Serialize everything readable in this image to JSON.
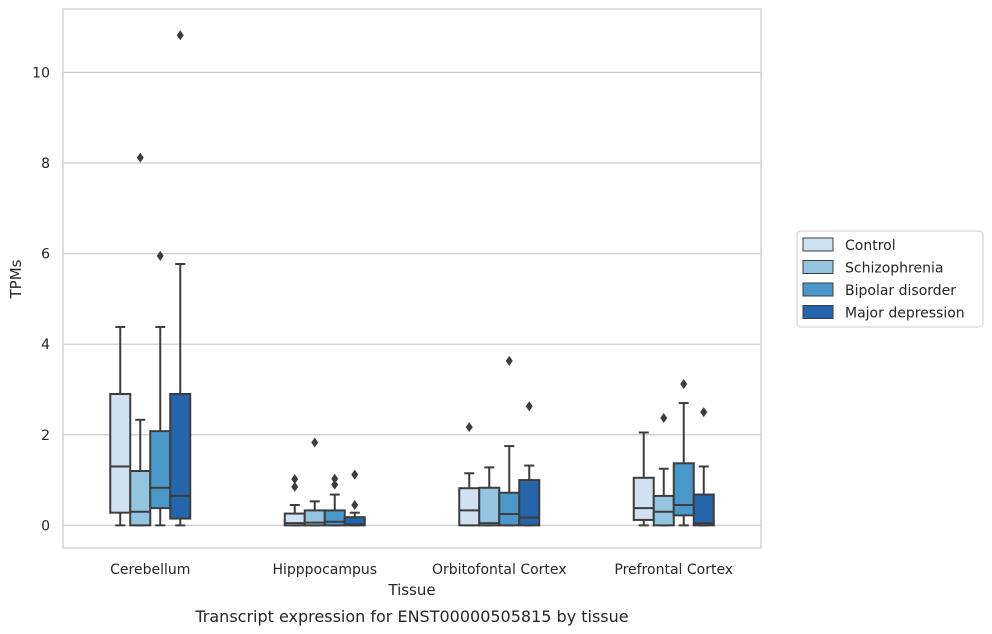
{
  "chart_data": {
    "type": "box",
    "caption": "Transcript expression for ENST00000505815 by tissue",
    "xlabel": "Tissue",
    "ylabel": "TPMs",
    "ylim": [
      -0.5,
      11.4
    ],
    "yticks": [
      0,
      2,
      4,
      6,
      8,
      10
    ],
    "grid": "horizontal",
    "legend_position": "right",
    "categories": [
      "Cerebellum",
      "Hipppocampus",
      "Orbitofontal Cortex",
      "Prefrontal Cortex"
    ],
    "series": [
      {
        "name": "Control",
        "color": "#d0e1f2",
        "boxes": [
          {
            "whislo": 0.0,
            "q1": 0.28,
            "med": 1.3,
            "q3": 2.9,
            "whishi": 4.38,
            "fliers": []
          },
          {
            "whislo": 0.0,
            "q1": 0.0,
            "med": 0.05,
            "q3": 0.26,
            "whishi": 0.45,
            "fliers": [
              0.85,
              1.02
            ]
          },
          {
            "whislo": 0.0,
            "q1": 0.0,
            "med": 0.33,
            "q3": 0.82,
            "whishi": 1.15,
            "fliers": [
              2.17
            ]
          },
          {
            "whislo": 0.0,
            "q1": 0.12,
            "med": 0.38,
            "q3": 1.05,
            "whishi": 2.05,
            "fliers": []
          }
        ]
      },
      {
        "name": "Schizophrenia",
        "color": "#94c4df",
        "boxes": [
          {
            "whislo": 0.0,
            "q1": 0.0,
            "med": 0.3,
            "q3": 1.2,
            "whishi": 2.33,
            "fliers": [
              8.12
            ]
          },
          {
            "whislo": 0.0,
            "q1": 0.0,
            "med": 0.06,
            "q3": 0.33,
            "whishi": 0.53,
            "fliers": [
              1.83
            ]
          },
          {
            "whislo": 0.0,
            "q1": 0.0,
            "med": 0.05,
            "q3": 0.83,
            "whishi": 1.28,
            "fliers": []
          },
          {
            "whislo": 0.0,
            "q1": 0.0,
            "med": 0.3,
            "q3": 0.65,
            "whishi": 1.25,
            "fliers": [
              2.37
            ]
          }
        ]
      },
      {
        "name": "Bipolar disorder",
        "color": "#4a98c9",
        "boxes": [
          {
            "whislo": 0.0,
            "q1": 0.38,
            "med": 0.83,
            "q3": 2.08,
            "whishi": 4.38,
            "fliers": [
              5.95
            ]
          },
          {
            "whislo": 0.0,
            "q1": 0.0,
            "med": 0.08,
            "q3": 0.33,
            "whishi": 0.68,
            "fliers": [
              0.9,
              1.03
            ]
          },
          {
            "whislo": 0.0,
            "q1": 0.0,
            "med": 0.25,
            "q3": 0.72,
            "whishi": 1.75,
            "fliers": [
              3.63
            ]
          },
          {
            "whislo": 0.0,
            "q1": 0.22,
            "med": 0.45,
            "q3": 1.37,
            "whishi": 2.7,
            "fliers": [
              3.12
            ]
          }
        ]
      },
      {
        "name": "Major depression",
        "color": "#2565ab",
        "boxes": [
          {
            "whislo": 0.0,
            "q1": 0.15,
            "med": 0.65,
            "q3": 2.9,
            "whishi": 5.77,
            "fliers": [
              10.82
            ]
          },
          {
            "whislo": 0.0,
            "q1": 0.0,
            "med": 0.02,
            "q3": 0.18,
            "whishi": 0.28,
            "fliers": [
              0.45,
              1.12
            ]
          },
          {
            "whislo": 0.0,
            "q1": 0.0,
            "med": 0.17,
            "q3": 1.0,
            "whishi": 1.32,
            "fliers": [
              2.63
            ]
          },
          {
            "whislo": 0.0,
            "q1": 0.0,
            "med": 0.05,
            "q3": 0.68,
            "whishi": 1.3,
            "fliers": [
              2.5
            ]
          }
        ]
      }
    ]
  }
}
